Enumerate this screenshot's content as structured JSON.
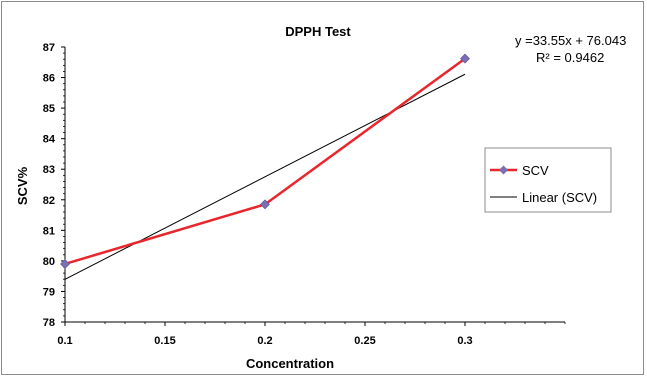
{
  "chart_data": {
    "type": "line",
    "title": "DPPH Test",
    "xlabel": "Concentration",
    "ylabel": "SCV%",
    "xlim": [
      0.1,
      0.35
    ],
    "ylim": [
      78,
      87
    ],
    "x_ticks": [
      "0.1",
      "0.15",
      "0.2",
      "0.25",
      "0.3"
    ],
    "x_tick_values": [
      0.1,
      0.15,
      0.2,
      0.25,
      0.3
    ],
    "y_ticks": [
      "78",
      "79",
      "80",
      "81",
      "82",
      "83",
      "84",
      "85",
      "86",
      "87"
    ],
    "y_tick_values": [
      78,
      79,
      80,
      81,
      82,
      83,
      84,
      85,
      86,
      87
    ],
    "x": [
      0.1,
      0.2,
      0.3
    ],
    "series": [
      {
        "name": "SCV",
        "values": [
          79.9,
          81.85,
          86.62
        ],
        "color": "#e8262b",
        "marker_color": "#7b6fb3",
        "marker": "diamond"
      }
    ],
    "trendline": {
      "name": "Linear (SCV)",
      "type": "linear",
      "slope": 33.55,
      "intercept": 76.043,
      "x_range": [
        0.1,
        0.3
      ],
      "color": "#000000",
      "equation_text": "y =33.55x + 76.043",
      "r2_text": "R² = 0.9462"
    },
    "legend": {
      "placement": "right",
      "entries": [
        "SCV",
        "Linear (SCV)"
      ]
    },
    "grid": false
  }
}
